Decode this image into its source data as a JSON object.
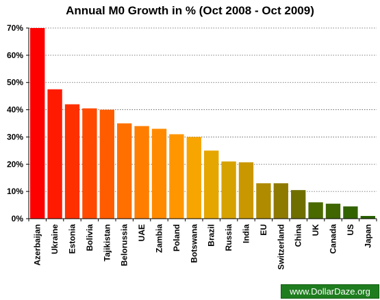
{
  "chart_data": {
    "type": "bar",
    "title": "Annual M0 Growth in % (Oct 2008 - Oct 2009)",
    "categories": [
      "Azerbaijan",
      "Ukraine",
      "Estonia",
      "Bolivia",
      "Tajikistan",
      "Belorussia",
      "UAE",
      "Zambia",
      "Poland",
      "Botswana",
      "Brazil",
      "Russia",
      "India",
      "EU",
      "Switzerland",
      "China",
      "UK",
      "Canada",
      "US",
      "Japan"
    ],
    "values": [
      70,
      47.5,
      42,
      40.5,
      40,
      35,
      34,
      33,
      31,
      30,
      25,
      21,
      20.7,
      13,
      13,
      10.5,
      6,
      5.5,
      4.5,
      1
    ],
    "colors": [
      "#ff0000",
      "#ff1a00",
      "#ff3000",
      "#ff4a00",
      "#ff5c00",
      "#ff7000",
      "#ff7e00",
      "#ff8a00",
      "#ff9600",
      "#f7a500",
      "#e6a600",
      "#d6a200",
      "#c99800",
      "#b08b00",
      "#8f7a00",
      "#6f6f00",
      "#4a6a00",
      "#3f6600",
      "#336300",
      "#2a6000"
    ],
    "ylim": [
      0,
      70
    ],
    "yticks": [
      "0%",
      "10%",
      "20%",
      "30%",
      "40%",
      "50%",
      "60%",
      "70%"
    ],
    "grid": true,
    "xlabel": "",
    "ylabel": ""
  },
  "watermark": "www.DollarDaze.org"
}
